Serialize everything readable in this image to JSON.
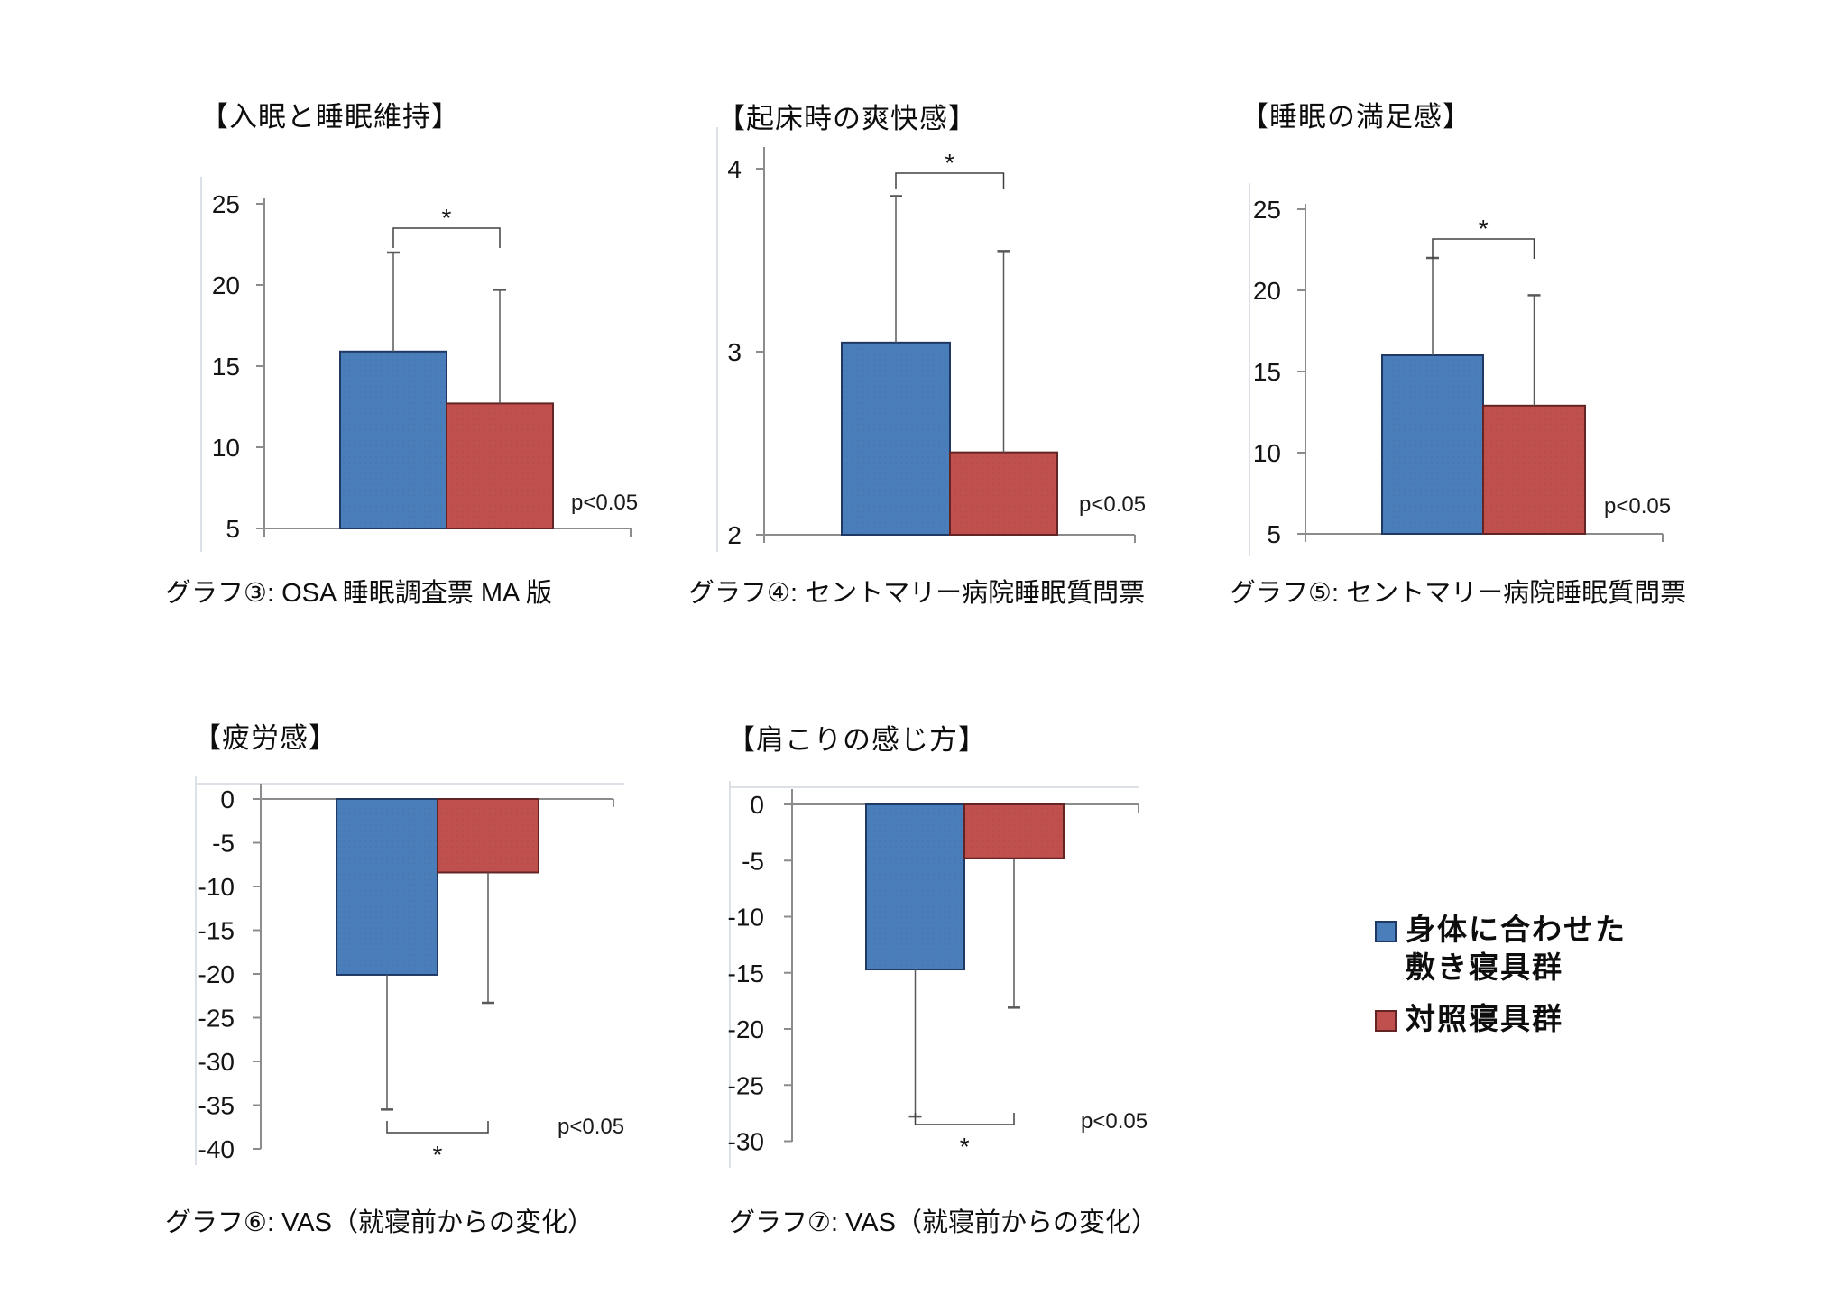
{
  "page": {
    "background": "#ffffff"
  },
  "colors": {
    "bar_fitted": "#4A7EBB",
    "bar_fitted_border": "#1F3864",
    "bar_control": "#C0504D",
    "bar_control_border": "#632423",
    "axis": "#8C8C8C",
    "error": "#595959",
    "bracket": "#404040",
    "chart_border": "#D0D7E0",
    "text": "#141414"
  },
  "legend": {
    "items": [
      {
        "key": "fitted",
        "color": "#4A7EBB",
        "label_lines": [
          "身体に合わせた",
          "敷き寝具群"
        ]
      },
      {
        "key": "control",
        "color": "#C0504D",
        "label_lines": [
          "対照寝具群"
        ]
      }
    ]
  },
  "chart_data": [
    {
      "id": "graph3",
      "type": "bar",
      "title": "【入眠と睡眠維持】",
      "caption": "グラフ③: OSA 睡眠調査票 MA 版",
      "p_label": "p<0.05",
      "sig_marker": "*",
      "axis": {
        "min": 5,
        "max": 25,
        "step": 5,
        "ticks": [
          25,
          20,
          15,
          10,
          5
        ]
      },
      "series": [
        {
          "name": "身体に合わせた敷き寝具群",
          "group": "fitted",
          "value": 15.9,
          "error_end": 22.0
        },
        {
          "name": "対照寝具群",
          "group": "control",
          "value": 12.7,
          "error_end": 19.7
        }
      ]
    },
    {
      "id": "graph4",
      "type": "bar",
      "title": "【起床時の爽快感】",
      "caption": "グラフ④: セントマリー病院睡眠質問票",
      "p_label": "p<0.05",
      "sig_marker": "*",
      "axis": {
        "min": 2,
        "max": 4,
        "step": 1,
        "ticks": [
          4,
          3,
          2
        ]
      },
      "series": [
        {
          "name": "身体に合わせた敷き寝具群",
          "group": "fitted",
          "value": 3.05,
          "error_end": 3.85
        },
        {
          "name": "対照寝具群",
          "group": "control",
          "value": 2.45,
          "error_end": 3.55
        }
      ]
    },
    {
      "id": "graph5",
      "type": "bar",
      "title": "【睡眠の満足感】",
      "caption": "グラフ⑤: セントマリー病院睡眠質問票",
      "p_label": "p<0.05",
      "sig_marker": "*",
      "axis": {
        "min": 5,
        "max": 25,
        "step": 5,
        "ticks": [
          25,
          20,
          15,
          10,
          5
        ]
      },
      "series": [
        {
          "name": "身体に合わせた敷き寝具群",
          "group": "fitted",
          "value": 16.0,
          "error_end": 22.0
        },
        {
          "name": "対照寝具群",
          "group": "control",
          "value": 12.9,
          "error_end": 19.7
        }
      ]
    },
    {
      "id": "graph6",
      "type": "bar",
      "title": "【疲労感】",
      "caption": "グラフ⑥: VAS（就寝前からの変化）",
      "p_label": "p<0.05",
      "sig_marker": "*",
      "axis": {
        "min": -40,
        "max": 0,
        "step": 5,
        "ticks": [
          0,
          -5,
          -10,
          -15,
          -20,
          -25,
          -30,
          -35,
          -40
        ]
      },
      "series": [
        {
          "name": "身体に合わせた敷き寝具群",
          "group": "fitted",
          "value": -20.1,
          "error_end": -35.5
        },
        {
          "name": "対照寝具群",
          "group": "control",
          "value": -8.4,
          "error_end": -23.3
        }
      ]
    },
    {
      "id": "graph7",
      "type": "bar",
      "title": "【肩こりの感じ方】",
      "caption": "グラフ⑦: VAS（就寝前からの変化）",
      "p_label": "p<0.05",
      "sig_marker": "*",
      "axis": {
        "min": -30,
        "max": 0,
        "step": 5,
        "ticks": [
          0,
          -5,
          -10,
          -15,
          -20,
          -25,
          -30
        ]
      },
      "series": [
        {
          "name": "身体に合わせた敷き寝具群",
          "group": "fitted",
          "value": -14.7,
          "error_end": -27.8
        },
        {
          "name": "対照寝具群",
          "group": "control",
          "value": -4.8,
          "error_end": -18.1
        }
      ]
    }
  ]
}
